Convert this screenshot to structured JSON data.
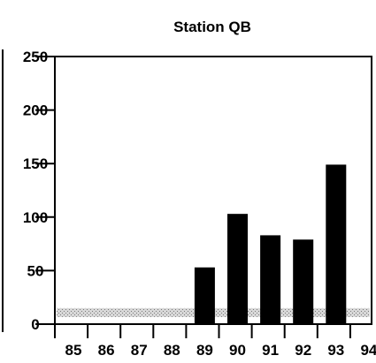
{
  "chart_data": {
    "type": "bar",
    "title": "Station QB",
    "xlabel": "",
    "ylabel": "",
    "categories": [
      "85",
      "86",
      "87",
      "88",
      "89",
      "90",
      "91",
      "92",
      "93",
      "94"
    ],
    "values": [
      null,
      null,
      null,
      null,
      53,
      103,
      83,
      79,
      149,
      null
    ],
    "ylim": [
      0,
      250
    ],
    "yticks": [
      "0",
      "50",
      "100",
      "150",
      "200",
      "250"
    ],
    "reference_line": {
      "value": 10,
      "style": "stippled gray band"
    },
    "grid": false,
    "colors": {
      "bar": "#000000",
      "reference": "#b8b8b8",
      "axis": "#000000"
    }
  }
}
